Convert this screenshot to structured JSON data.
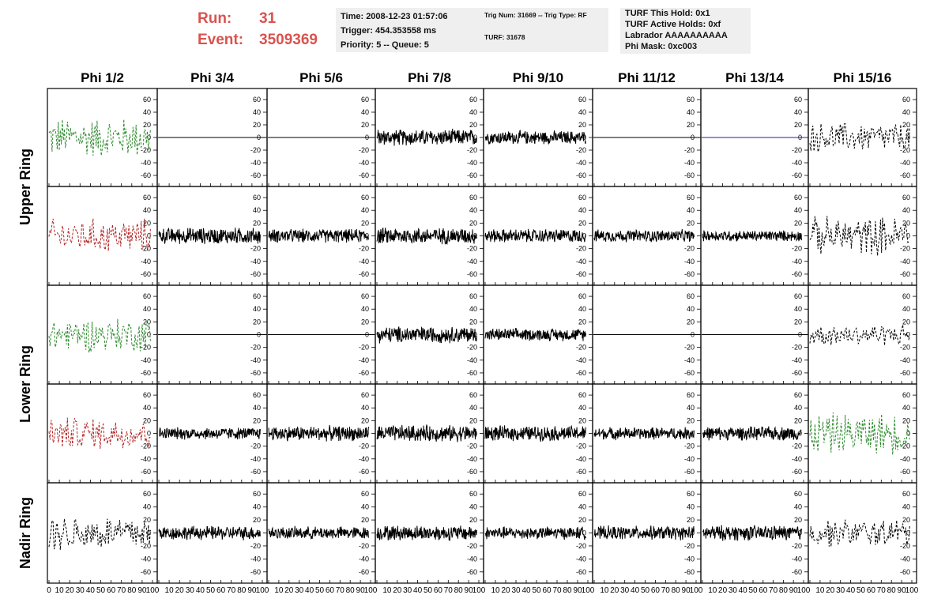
{
  "header": {
    "run_label": "Run:",
    "run_value": "31",
    "event_label": "Event:",
    "event_value": "3509369",
    "time_line": "Time: 2008-12-23 01:57:06",
    "trigger_line": "Trigger: 454.353558 ms",
    "priority_line": "Priority: 5 -- Queue: 5",
    "trig_line": "Trig Num: 31669 -- Trig Type: RF",
    "turf_line": "TURF: 31678",
    "hold_line": "TURF This Hold: 0x1",
    "active_line": "TURF Active Holds: 0xf",
    "labrador_line": "Labrador AAAAAAAAAA",
    "phimask_line": "Phi Mask: 0xc003"
  },
  "chart_data": {
    "type": "line",
    "title": "",
    "column_titles": [
      "Phi 1/2",
      "Phi 3/4",
      "Phi 5/6",
      "Phi 7/8",
      "Phi 9/10",
      "Phi 11/12",
      "Phi 13/14",
      "Phi 15/16"
    ],
    "row_titles": [
      {
        "label": "Upper Ring",
        "rows": [
          0,
          1
        ]
      },
      {
        "label": "Lower Ring",
        "rows": [
          2,
          3
        ]
      },
      {
        "label": "Nadir Ring",
        "rows": [
          4
        ]
      }
    ],
    "xlim": [
      0,
      100
    ],
    "ylim": [
      -70,
      70
    ],
    "y_ticks": [
      60,
      40,
      20,
      0,
      -20,
      -40,
      -60
    ],
    "x_tick_labels": [
      "0",
      "10",
      "20",
      "30",
      "40",
      "50",
      "60",
      "70",
      "80",
      "90",
      "100"
    ],
    "colors": {
      "green": "#2e8b2e",
      "red": "#b22222",
      "black": "#000000",
      "blue": "#1f1faf"
    },
    "panels": [
      [
        {
          "style": "green-dashed",
          "amp": 30
        },
        {
          "style": "flat"
        },
        {
          "style": "flat"
        },
        {
          "style": "black",
          "amp": 12
        },
        {
          "style": "black",
          "amp": 10
        },
        {
          "style": "flat"
        },
        {
          "style": "flat-blue"
        },
        {
          "style": "black-dashed",
          "amp": 22
        }
      ],
      [
        {
          "style": "red-dashed",
          "amp": 25
        },
        {
          "style": "black",
          "amp": 12
        },
        {
          "style": "black",
          "amp": 10
        },
        {
          "style": "black",
          "amp": 12
        },
        {
          "style": "black",
          "amp": 10
        },
        {
          "style": "black",
          "amp": 9
        },
        {
          "style": "black",
          "amp": 8
        },
        {
          "style": "black-dashed",
          "amp": 28
        }
      ],
      [
        {
          "style": "green-dashed",
          "amp": 25
        },
        {
          "style": "flat"
        },
        {
          "style": "flat"
        },
        {
          "style": "black",
          "amp": 12
        },
        {
          "style": "black",
          "amp": 9
        },
        {
          "style": "flat"
        },
        {
          "style": "flat"
        },
        {
          "style": "black-dashed",
          "amp": 16
        }
      ],
      [
        {
          "style": "red-dashed",
          "amp": 24
        },
        {
          "style": "black",
          "amp": 9
        },
        {
          "style": "black",
          "amp": 11
        },
        {
          "style": "black",
          "amp": 12
        },
        {
          "style": "black",
          "amp": 11
        },
        {
          "style": "black",
          "amp": 9
        },
        {
          "style": "black",
          "amp": 10
        },
        {
          "style": "green-dashed",
          "amp": 30
        }
      ],
      [
        {
          "style": "black-dashed",
          "amp": 26
        },
        {
          "style": "black",
          "amp": 10
        },
        {
          "style": "black",
          "amp": 9
        },
        {
          "style": "black",
          "amp": 11
        },
        {
          "style": "black",
          "amp": 9
        },
        {
          "style": "black",
          "amp": 10
        },
        {
          "style": "black",
          "amp": 11
        },
        {
          "style": "black-dashed",
          "amp": 20
        }
      ]
    ]
  }
}
